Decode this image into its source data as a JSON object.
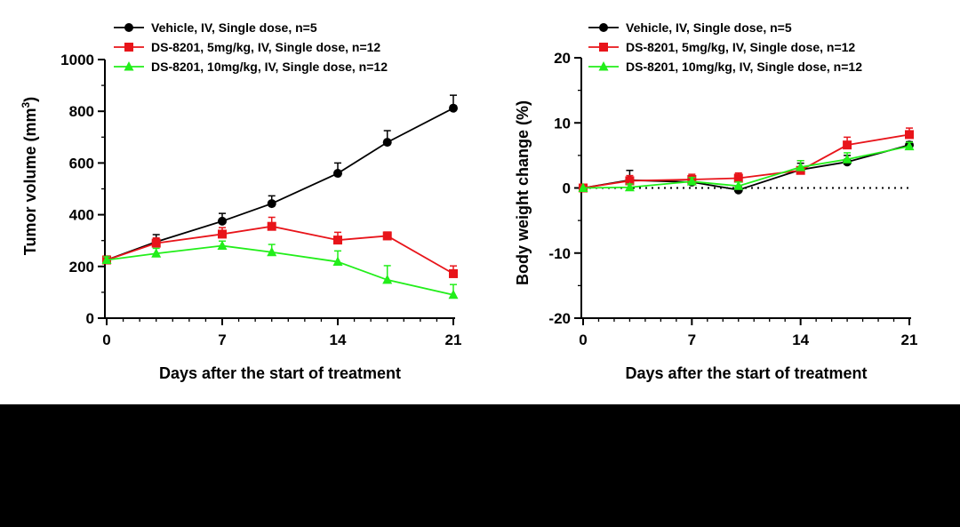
{
  "chart_data": [
    {
      "type": "line",
      "id": "tumor",
      "xlabel": "Days after the start of treatment",
      "ylabel_main": "Tumor volume (mm",
      "ylabel_sup": "3",
      "ylabel_close": ")",
      "xlim": [
        0,
        21
      ],
      "ylim": [
        0,
        1000
      ],
      "xticks": [
        0,
        7,
        14,
        21
      ],
      "xtick_labels": [
        "0",
        "7",
        "14",
        "21"
      ],
      "yticks": [
        0,
        200,
        400,
        600,
        800,
        1000
      ],
      "ytick_labels": [
        "0",
        "200",
        "400",
        "600",
        "800",
        "1000"
      ],
      "x_minor_step": 1,
      "y_minor_step": 100,
      "series": [
        {
          "name": "Vehicle, IV, Single dose, n=5",
          "color": "#000000",
          "marker": "circle",
          "x": [
            0,
            3,
            7,
            10,
            14,
            17,
            21
          ],
          "values": [
            225,
            295,
            375,
            443,
            560,
            680,
            812
          ],
          "err": [
            15,
            28,
            30,
            30,
            40,
            45,
            50
          ]
        },
        {
          "name": "DS-8201, 5mg/kg, IV, Single dose, n=12",
          "color": "#e8141a",
          "marker": "square",
          "x": [
            0,
            3,
            7,
            10,
            14,
            17,
            21
          ],
          "values": [
            225,
            290,
            325,
            355,
            302,
            318,
            172
          ],
          "err": [
            12,
            20,
            25,
            35,
            30,
            15,
            30
          ]
        },
        {
          "name": "DS-8201, 10mg/kg, IV, Single dose, n=12",
          "color": "#22ee1a",
          "marker": "triangle",
          "x": [
            0,
            3,
            7,
            10,
            14,
            17,
            21
          ],
          "values": [
            225,
            250,
            280,
            255,
            218,
            148,
            90
          ],
          "err": [
            12,
            20,
            18,
            30,
            42,
            55,
            40
          ]
        }
      ]
    },
    {
      "type": "line",
      "id": "bodyweight",
      "xlabel": "Days after the start of treatment",
      "ylabel": "Body weight change (%)",
      "xlim": [
        0,
        21
      ],
      "ylim": [
        -20,
        20
      ],
      "xticks": [
        0,
        7,
        14,
        21
      ],
      "xtick_labels": [
        "0",
        "7",
        "14",
        "21"
      ],
      "yticks": [
        -20,
        -10,
        0,
        10,
        20
      ],
      "ytick_labels": [
        "-20",
        "-10",
        "0",
        "10",
        "20"
      ],
      "x_minor_step": 1,
      "y_minor_step": 5,
      "reference_line": 0,
      "series": [
        {
          "name": "Vehicle, IV, Single dose, n=5",
          "color": "#000000",
          "marker": "circle",
          "x": [
            0,
            3,
            7,
            10,
            14,
            17,
            21
          ],
          "values": [
            0,
            1.2,
            0.9,
            -0.3,
            2.8,
            4.0,
            6.6
          ],
          "err": [
            0,
            1.5,
            1.0,
            0.5,
            1.0,
            1.0,
            0.5
          ]
        },
        {
          "name": "DS-8201, 5mg/kg, IV, Single dose, n=12",
          "color": "#e8141a",
          "marker": "square",
          "x": [
            0,
            3,
            7,
            10,
            14,
            17,
            21
          ],
          "values": [
            0,
            1.1,
            1.3,
            1.5,
            2.7,
            6.6,
            8.2
          ],
          "err": [
            0,
            0.8,
            0.8,
            0.8,
            1.5,
            1.2,
            1.0
          ]
        },
        {
          "name": "DS-8201, 10mg/kg, IV, Single dose, n=12",
          "color": "#22ee1a",
          "marker": "triangle",
          "x": [
            0,
            3,
            7,
            10,
            14,
            17,
            21
          ],
          "values": [
            0,
            0.1,
            1.0,
            0.3,
            3.2,
            4.4,
            6.4
          ],
          "err": [
            0,
            0.5,
            0.6,
            0.6,
            1.0,
            1.0,
            0.6
          ]
        }
      ]
    }
  ]
}
